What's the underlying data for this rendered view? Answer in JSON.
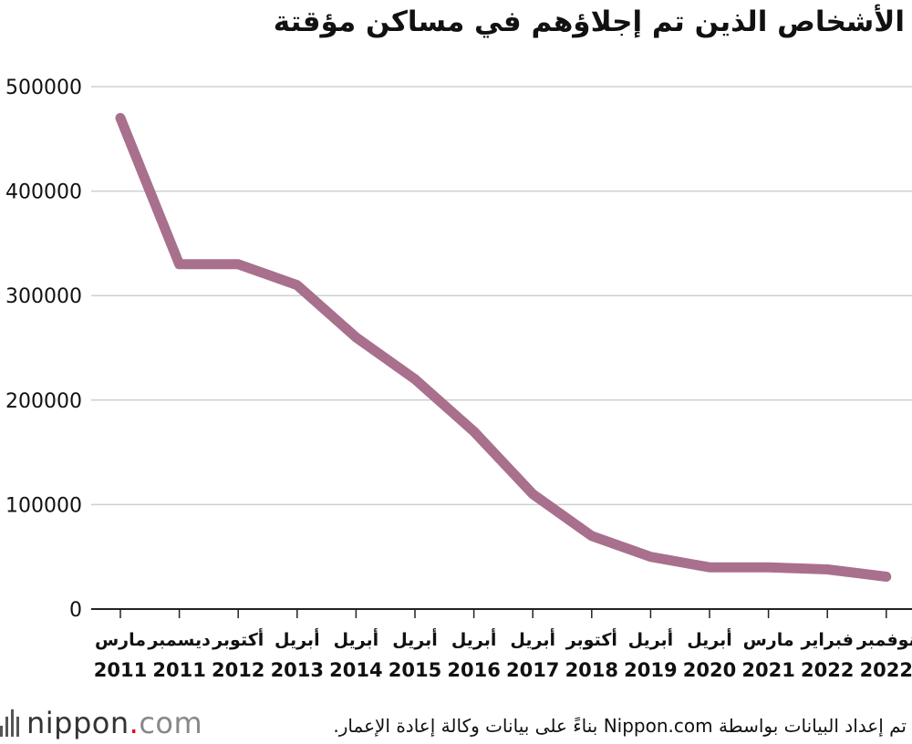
{
  "chart_data": {
    "type": "line",
    "title": "الأشخاص الذين تم إجلاؤهم في مساكن مؤقتة",
    "categories": [
      [
        "مارس",
        "2011"
      ],
      [
        "ديسمبر",
        "2011"
      ],
      [
        "أكتوبر",
        "2012"
      ],
      [
        "أبريل",
        "2013"
      ],
      [
        "أبريل",
        "2014"
      ],
      [
        "أبريل",
        "2015"
      ],
      [
        "أبريل",
        "2016"
      ],
      [
        "أبريل",
        "2017"
      ],
      [
        "أكتوبر",
        "2018"
      ],
      [
        "أبريل",
        "2019"
      ],
      [
        "أبريل",
        "2020"
      ],
      [
        "مارس",
        "2021"
      ],
      [
        "فبراير",
        "2022"
      ],
      [
        "نوفمبر",
        "2022"
      ]
    ],
    "values": [
      470000,
      330000,
      330000,
      310000,
      260000,
      220000,
      170000,
      110000,
      70000,
      50000,
      40000,
      40000,
      38000,
      31000
    ],
    "yticks": [
      "0",
      "100000",
      "200000",
      "300000",
      "400000",
      "500000"
    ],
    "ylim": [
      0,
      500000
    ],
    "grid": true,
    "line_color": "#a8708c"
  },
  "footer": {
    "logo": {
      "brand": "nippon",
      "dot": ".",
      "tld": "com"
    },
    "source": "تم إعداد البيانات بواسطة Nippon.com بناءً على بيانات وكالة إعادة الإعمار."
  }
}
